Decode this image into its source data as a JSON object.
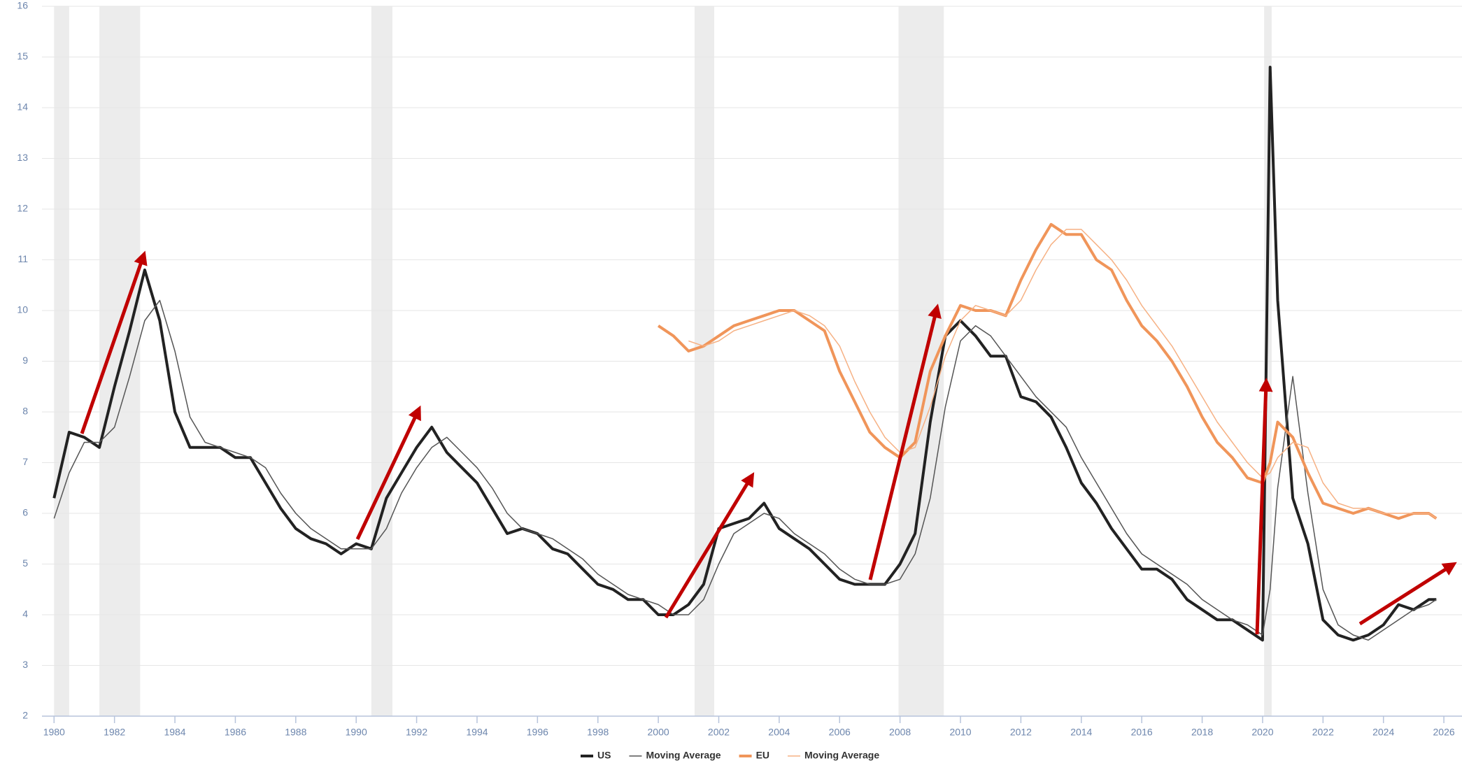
{
  "chart_data": {
    "type": "line",
    "x": [
      1980.0,
      1980.5,
      1981.0,
      1981.5,
      1982.0,
      1982.5,
      1983.0,
      1983.5,
      1984.0,
      1984.5,
      1985.0,
      1985.5,
      1986.0,
      1986.5,
      1987.0,
      1987.5,
      1988.0,
      1988.5,
      1989.0,
      1989.5,
      1990.0,
      1990.5,
      1991.0,
      1991.5,
      1992.0,
      1992.5,
      1993.0,
      1993.5,
      1994.0,
      1994.5,
      1995.0,
      1995.5,
      1996.0,
      1996.5,
      1997.0,
      1997.5,
      1998.0,
      1998.5,
      1999.0,
      1999.5,
      2000.0,
      2000.5,
      2001.0,
      2001.5,
      2002.0,
      2002.5,
      2003.0,
      2003.5,
      2004.0,
      2004.5,
      2005.0,
      2005.5,
      2006.0,
      2006.5,
      2007.0,
      2007.5,
      2008.0,
      2008.5,
      2009.0,
      2009.5,
      2010.0,
      2010.5,
      2011.0,
      2011.5,
      2012.0,
      2012.5,
      2013.0,
      2013.5,
      2014.0,
      2014.5,
      2015.0,
      2015.5,
      2016.0,
      2016.5,
      2017.0,
      2017.5,
      2018.0,
      2018.5,
      2019.0,
      2019.5,
      2020.0,
      2020.25,
      2020.5,
      2021.0,
      2021.5,
      2022.0,
      2022.5,
      2023.0,
      2023.5,
      2024.0,
      2024.5,
      2025.0,
      2025.5,
      2025.75
    ],
    "series": [
      {
        "name": "US",
        "color": "#222222",
        "width": 4,
        "values": [
          6.3,
          7.6,
          7.5,
          7.3,
          8.5,
          9.6,
          10.8,
          9.8,
          8.0,
          7.3,
          7.3,
          7.3,
          7.1,
          7.1,
          6.6,
          6.1,
          5.7,
          5.5,
          5.4,
          5.2,
          5.4,
          5.3,
          6.3,
          6.8,
          7.3,
          7.7,
          7.2,
          6.9,
          6.6,
          6.1,
          5.6,
          5.7,
          5.6,
          5.3,
          5.2,
          4.9,
          4.6,
          4.5,
          4.3,
          4.3,
          4.0,
          4.0,
          4.2,
          4.6,
          5.7,
          5.8,
          5.9,
          6.2,
          5.7,
          5.5,
          5.3,
          5.0,
          4.7,
          4.6,
          4.6,
          4.6,
          5.0,
          5.6,
          7.8,
          9.5,
          9.8,
          9.5,
          9.1,
          9.1,
          8.3,
          8.2,
          7.9,
          7.3,
          6.6,
          6.2,
          5.7,
          5.3,
          4.9,
          4.9,
          4.7,
          4.3,
          4.1,
          3.9,
          3.9,
          3.7,
          3.5,
          14.8,
          10.2,
          6.3,
          5.4,
          3.9,
          3.6,
          3.5,
          3.6,
          3.8,
          4.2,
          4.1,
          4.3,
          4.3
        ]
      },
      {
        "name": "Moving Average",
        "color": "#555555",
        "width": 1.5,
        "values": [
          5.9,
          6.8,
          7.4,
          7.4,
          7.7,
          8.7,
          9.8,
          10.2,
          9.2,
          7.9,
          7.4,
          7.3,
          7.2,
          7.1,
          6.9,
          6.4,
          6.0,
          5.7,
          5.5,
          5.3,
          5.3,
          5.3,
          5.7,
          6.4,
          6.9,
          7.3,
          7.5,
          7.2,
          6.9,
          6.5,
          6.0,
          5.7,
          5.6,
          5.5,
          5.3,
          5.1,
          4.8,
          4.6,
          4.4,
          4.3,
          4.2,
          4.0,
          4.0,
          4.3,
          5.0,
          5.6,
          5.8,
          6.0,
          5.9,
          5.6,
          5.4,
          5.2,
          4.9,
          4.7,
          4.6,
          4.6,
          4.7,
          5.2,
          6.3,
          8.1,
          9.4,
          9.7,
          9.5,
          9.1,
          8.7,
          8.3,
          8.0,
          7.7,
          7.1,
          6.6,
          6.1,
          5.6,
          5.2,
          5.0,
          4.8,
          4.6,
          4.3,
          4.1,
          3.9,
          3.8,
          3.6,
          4.5,
          6.5,
          8.7,
          6.4,
          4.5,
          3.8,
          3.6,
          3.5,
          3.7,
          3.9,
          4.1,
          4.2,
          4.3
        ]
      },
      {
        "name": "EU",
        "color": "#f0955a",
        "width": 4,
        "values": [
          null,
          null,
          null,
          null,
          null,
          null,
          null,
          null,
          null,
          null,
          null,
          null,
          null,
          null,
          null,
          null,
          null,
          null,
          null,
          null,
          null,
          null,
          null,
          null,
          null,
          null,
          null,
          null,
          null,
          null,
          null,
          null,
          null,
          null,
          null,
          null,
          null,
          null,
          null,
          null,
          9.7,
          9.5,
          9.2,
          9.3,
          9.5,
          9.7,
          9.8,
          9.9,
          10.0,
          10.0,
          9.8,
          9.6,
          8.8,
          8.2,
          7.6,
          7.3,
          7.1,
          7.4,
          8.8,
          9.5,
          10.1,
          10.0,
          10.0,
          9.9,
          10.6,
          11.2,
          11.7,
          11.5,
          11.5,
          11.0,
          10.8,
          10.2,
          9.7,
          9.4,
          9.0,
          8.5,
          7.9,
          7.4,
          7.1,
          6.7,
          6.6,
          7.0,
          7.8,
          7.5,
          6.8,
          6.2,
          6.1,
          6.0,
          6.1,
          6.0,
          5.9,
          6.0,
          6.0,
          5.9
        ]
      },
      {
        "name": "Moving Average",
        "color": "#f6b184",
        "width": 1.5,
        "values": [
          null,
          null,
          null,
          null,
          null,
          null,
          null,
          null,
          null,
          null,
          null,
          null,
          null,
          null,
          null,
          null,
          null,
          null,
          null,
          null,
          null,
          null,
          null,
          null,
          null,
          null,
          null,
          null,
          null,
          null,
          null,
          null,
          null,
          null,
          null,
          null,
          null,
          null,
          null,
          null,
          null,
          null,
          9.4,
          9.3,
          9.4,
          9.6,
          9.7,
          9.8,
          9.9,
          10.0,
          9.9,
          9.7,
          9.3,
          8.6,
          8.0,
          7.5,
          7.2,
          7.3,
          8.1,
          9.1,
          9.8,
          10.1,
          10.0,
          9.9,
          10.2,
          10.8,
          11.3,
          11.6,
          11.6,
          11.3,
          11.0,
          10.6,
          10.1,
          9.7,
          9.3,
          8.8,
          8.3,
          7.8,
          7.4,
          7.0,
          6.7,
          6.8,
          7.1,
          7.4,
          7.3,
          6.6,
          6.2,
          6.1,
          6.1,
          6.0,
          6.0,
          6.0,
          6.0,
          5.9
        ]
      }
    ],
    "recessions": [
      [
        1980.0,
        1980.5
      ],
      [
        1981.5,
        1982.85
      ],
      [
        1990.5,
        1991.2
      ],
      [
        2001.2,
        2001.85
      ],
      [
        2007.95,
        2009.45
      ],
      [
        2020.05,
        2020.3
      ]
    ],
    "xlim": [
      1979.6,
      2026.6
    ],
    "ylim": [
      2,
      16
    ],
    "xticks": [
      1980,
      1982,
      1984,
      1986,
      1988,
      1990,
      1992,
      1994,
      1996,
      1998,
      2000,
      2002,
      2004,
      2006,
      2008,
      2010,
      2012,
      2014,
      2016,
      2018,
      2020,
      2022,
      2024,
      2026
    ],
    "yticks": [
      2,
      3,
      4,
      5,
      6,
      7,
      8,
      9,
      10,
      11,
      12,
      13,
      14,
      15,
      16
    ],
    "grid": true
  }
}
